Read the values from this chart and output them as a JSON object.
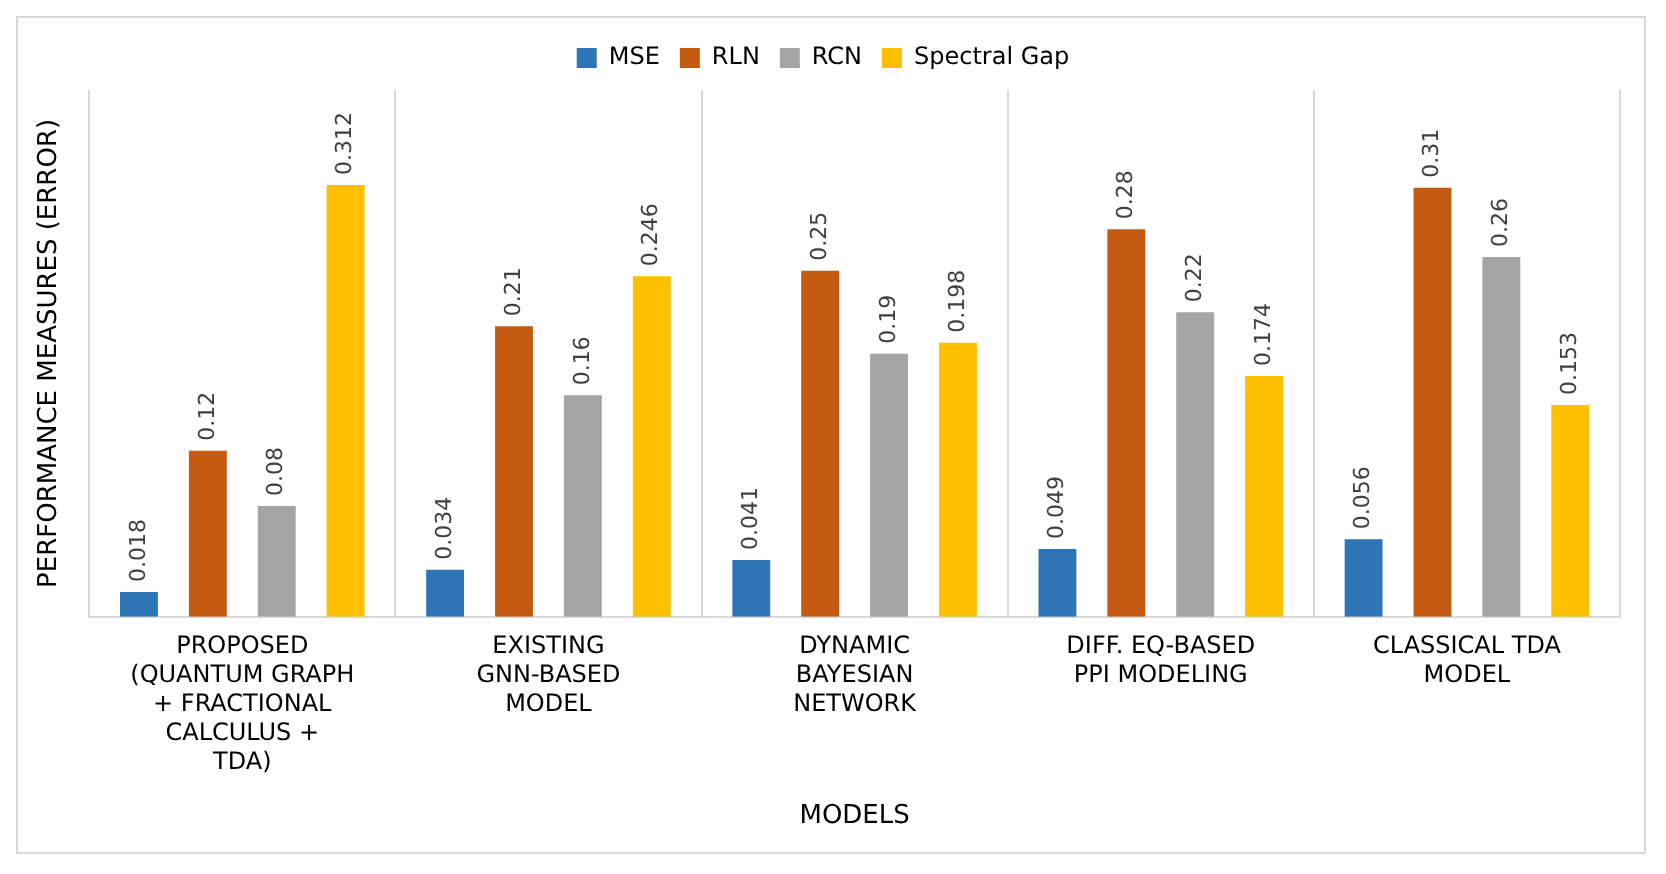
{
  "chart_data": {
    "type": "bar",
    "categories": [
      "PROPOSED (QUANTUM GRAPH + FRACTIONAL CALCULUS + TDA)",
      "EXISTING GNN-BASED MODEL",
      "DYNAMIC BAYESIAN NETWORK",
      "DIFF. EQ-BASED PPI MODELING",
      "CLASSICAL TDA MODEL"
    ],
    "series": [
      {
        "name": "MSE",
        "color": "#2e75b6",
        "values": [
          0.018,
          0.034,
          0.041,
          0.049,
          0.056
        ]
      },
      {
        "name": "RLN",
        "color": "#c55a11",
        "values": [
          0.12,
          0.21,
          0.25,
          0.28,
          0.31
        ]
      },
      {
        "name": "RCN",
        "color": "#a5a5a5",
        "values": [
          0.08,
          0.16,
          0.19,
          0.22,
          0.26
        ]
      },
      {
        "name": "Spectral Gap",
        "color": "#ffc000",
        "values": [
          0.312,
          0.246,
          0.198,
          0.174,
          0.153
        ]
      }
    ],
    "xlabel": "MODELS",
    "ylabel": "PERFORMANCE MEASURES (ERROR)",
    "data_labels": true,
    "legend": "top",
    "grid": "x",
    "tick_labels": "x"
  }
}
